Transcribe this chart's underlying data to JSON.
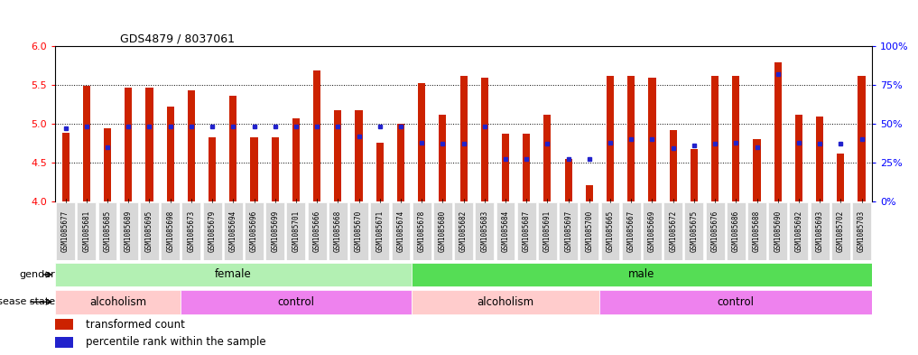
{
  "title": "GDS4879 / 8037061",
  "samples": [
    "GSM1085677",
    "GSM1085681",
    "GSM1085685",
    "GSM1085689",
    "GSM1085695",
    "GSM1085698",
    "GSM1085673",
    "GSM1085679",
    "GSM1085694",
    "GSM1085696",
    "GSM1085699",
    "GSM1085701",
    "GSM1085666",
    "GSM1085668",
    "GSM1085670",
    "GSM1085671",
    "GSM1085674",
    "GSM1085678",
    "GSM1085680",
    "GSM1085682",
    "GSM1085683",
    "GSM1085684",
    "GSM1085687",
    "GSM1085691",
    "GSM1085697",
    "GSM1085700",
    "GSM1085665",
    "GSM1085667",
    "GSM1085669",
    "GSM1085672",
    "GSM1085675",
    "GSM1085676",
    "GSM1085686",
    "GSM1085688",
    "GSM1085690",
    "GSM1085692",
    "GSM1085693",
    "GSM1085702",
    "GSM1085703"
  ],
  "bar_values": [
    4.88,
    5.49,
    4.94,
    5.47,
    5.47,
    5.22,
    5.43,
    4.83,
    5.36,
    4.83,
    4.83,
    5.07,
    5.69,
    5.17,
    5.17,
    4.75,
    5.0,
    5.52,
    5.12,
    5.62,
    5.59,
    4.87,
    4.87,
    5.12,
    4.55,
    4.21,
    5.62,
    5.62,
    5.59,
    4.92,
    4.67,
    5.62,
    5.62,
    4.8,
    5.79,
    5.12,
    5.09,
    4.62,
    5.62
  ],
  "percentile_values": [
    47,
    48,
    35,
    48,
    48,
    48,
    48,
    48,
    48,
    48,
    48,
    48,
    48,
    48,
    42,
    48,
    48,
    38,
    37,
    37,
    48,
    27,
    27,
    37,
    27,
    27,
    38,
    40,
    40,
    34,
    36,
    37,
    38,
    35,
    82,
    38,
    37,
    37,
    40
  ],
  "gender_groups": [
    {
      "label": "female",
      "start": 0,
      "end": 17,
      "color": "#b3f0b3"
    },
    {
      "label": "male",
      "start": 17,
      "end": 39,
      "color": "#55dd55"
    }
  ],
  "disease_groups": [
    {
      "label": "alcoholism",
      "start": 0,
      "end": 6,
      "color": "#ffcccc"
    },
    {
      "label": "control",
      "start": 6,
      "end": 17,
      "color": "#ee82ee"
    },
    {
      "label": "alcoholism",
      "start": 17,
      "end": 26,
      "color": "#ffcccc"
    },
    {
      "label": "control",
      "start": 26,
      "end": 39,
      "color": "#ee82ee"
    }
  ],
  "ylim_left": [
    4.0,
    6.0
  ],
  "ylim_right": [
    0,
    100
  ],
  "yticks_left": [
    4.0,
    4.5,
    5.0,
    5.5,
    6.0
  ],
  "yticks_right": [
    0,
    25,
    50,
    75,
    100
  ],
  "ytick_labels_right": [
    "0%",
    "25%",
    "50%",
    "75%",
    "100%"
  ],
  "bar_color": "#cc2200",
  "percentile_color": "#2222cc",
  "bar_width": 0.35,
  "base_value": 4.0
}
